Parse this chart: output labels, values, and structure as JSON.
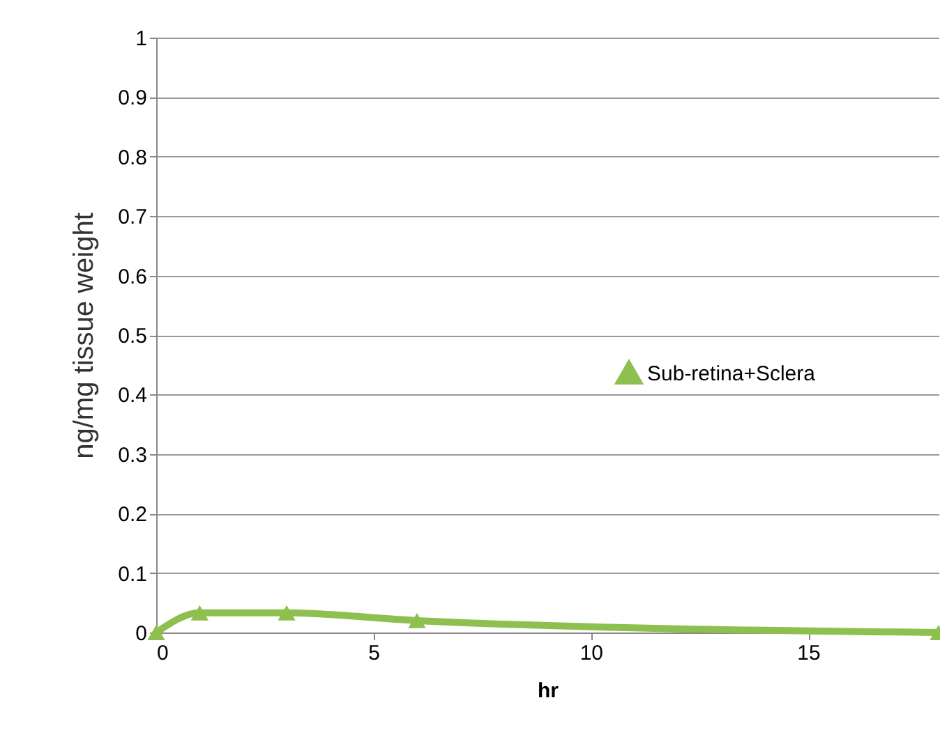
{
  "chart_data": {
    "type": "line",
    "xlabel": "hr",
    "ylabel": "ng/mg tissue weight",
    "x": [
      0,
      1,
      3,
      6,
      18
    ],
    "series": [
      {
        "name": "Sub-retina+Sclera",
        "color": "#8dc04f",
        "values": [
          0,
          0.033,
          0.033,
          0.02,
          0
        ]
      }
    ],
    "xlim": [
      0,
      18
    ],
    "xticks": [
      0,
      5,
      10,
      15
    ],
    "ylim": [
      0,
      1
    ],
    "yticks": [
      0,
      0.1,
      0.2,
      0.3,
      0.4,
      0.5,
      0.6,
      0.7,
      0.8,
      0.9,
      1
    ],
    "grid": "y",
    "legend": "right",
    "marker": "triangle",
    "line_style": "solid"
  }
}
